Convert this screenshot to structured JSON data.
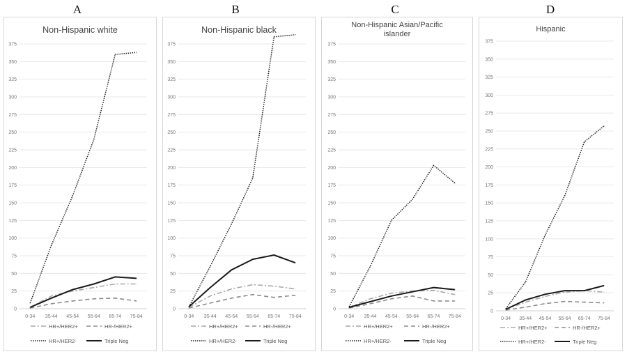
{
  "chart_data": [
    {
      "type": "line",
      "panel_letter": "A",
      "title": "Non-Hispanic white",
      "categories": [
        "0-34",
        "35-44",
        "45-54",
        "55-64",
        "65-74",
        "75-84"
      ],
      "ylim": [
        0,
        375
      ],
      "yticks": [
        "375",
        "350",
        "325",
        "300",
        "275",
        "250",
        "225",
        "200",
        "175",
        "150",
        "125",
        "100",
        "75",
        "50",
        "25",
        "0"
      ],
      "grid": true,
      "legend": "bottom",
      "series": [
        {
          "name": "HR+/HER2+",
          "values": [
            2,
            18,
            25,
            30,
            35,
            35
          ]
        },
        {
          "name": "HR-/HER2+",
          "values": [
            1,
            7,
            11,
            14,
            15,
            11
          ]
        },
        {
          "name": "HR+/HER2-",
          "values": [
            8,
            90,
            160,
            240,
            360,
            363
          ]
        },
        {
          "name": "Triple Neg",
          "values": [
            2,
            15,
            27,
            35,
            45,
            43
          ]
        }
      ]
    },
    {
      "type": "line",
      "panel_letter": "B",
      "title": "Non-Hispanic black",
      "categories": [
        "0-34",
        "35-44",
        "45-54",
        "55-64",
        "65-74",
        "75-84"
      ],
      "ylim": [
        0,
        375
      ],
      "yticks": [
        "375",
        "350",
        "325",
        "300",
        "275",
        "250",
        "225",
        "200",
        "175",
        "150",
        "125",
        "100",
        "75",
        "50",
        "25",
        "0"
      ],
      "grid": true,
      "legend": "bottom",
      "series": [
        {
          "name": "HR+/HER2+",
          "values": [
            2,
            18,
            28,
            34,
            32,
            28
          ]
        },
        {
          "name": "HR-/HER2+",
          "values": [
            1,
            8,
            15,
            20,
            16,
            19
          ]
        },
        {
          "name": "HR+/HER2-",
          "values": [
            3,
            60,
            120,
            185,
            385,
            388
          ]
        },
        {
          "name": "Triple Neg",
          "values": [
            3,
            30,
            55,
            70,
            76,
            65
          ]
        }
      ]
    },
    {
      "type": "line",
      "panel_letter": "C",
      "title": "Non-Hispanic Asian/Pacific islander",
      "categories": [
        "0-34",
        "35-44",
        "45-54",
        "55-64",
        "65-74",
        "75-84"
      ],
      "ylim": [
        0,
        375
      ],
      "yticks": [
        "375",
        "350",
        "325",
        "300",
        "275",
        "250",
        "225",
        "200",
        "175",
        "150",
        "125",
        "100",
        "75",
        "50",
        "25",
        "0"
      ],
      "grid": true,
      "legend": "bottom",
      "series": [
        {
          "name": "HR+/HER2+",
          "values": [
            2,
            14,
            22,
            25,
            26,
            20
          ]
        },
        {
          "name": "HR-/HER2+",
          "values": [
            1,
            7,
            14,
            18,
            11,
            11
          ]
        },
        {
          "name": "HR+/HER2-",
          "values": [
            3,
            60,
            125,
            155,
            203,
            178
          ]
        },
        {
          "name": "Triple Neg",
          "values": [
            2,
            10,
            18,
            24,
            30,
            27
          ]
        }
      ]
    },
    {
      "type": "line",
      "panel_letter": "D",
      "title": "Hispanic",
      "categories": [
        "0-34",
        "35-44",
        "45-54",
        "55-64",
        "65-74",
        "75-84"
      ],
      "ylim": [
        0,
        375
      ],
      "yticks": [
        "375",
        "350",
        "325",
        "300",
        "275",
        "250",
        "225",
        "200",
        "175",
        "150",
        "125",
        "100",
        "75",
        "50",
        "25",
        "0"
      ],
      "grid": true,
      "legend": "bottom",
      "series": [
        {
          "name": "HR+/HER2+",
          "values": [
            2,
            12,
            20,
            26,
            28,
            26
          ]
        },
        {
          "name": "HR-/HER2+",
          "values": [
            1,
            5,
            10,
            13,
            12,
            11
          ]
        },
        {
          "name": "HR+/HER2-",
          "values": [
            3,
            40,
            105,
            160,
            235,
            257
          ]
        },
        {
          "name": "Triple Neg",
          "values": [
            2,
            15,
            23,
            28,
            28,
            35
          ]
        }
      ]
    }
  ]
}
